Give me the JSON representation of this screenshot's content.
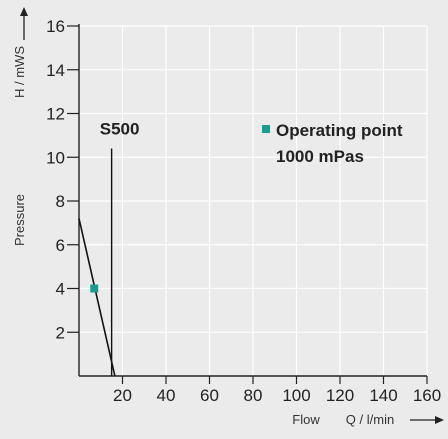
{
  "chart_data": {
    "type": "line",
    "xlabel": "Q / l/min",
    "xlabel_prefix": "Flow",
    "ylabel": "H / mWS",
    "ylabel_prefix": "Pressure",
    "xlim": [
      0,
      160
    ],
    "ylim": [
      0,
      16
    ],
    "x_ticks": [
      20,
      40,
      60,
      80,
      100,
      120,
      140,
      160
    ],
    "y_ticks": [
      2,
      4,
      6,
      8,
      10,
      12,
      14,
      16
    ],
    "grid": true,
    "series": [
      {
        "name": "S500",
        "x": [
          0,
          16.5
        ],
        "y": [
          7.2,
          0
        ]
      }
    ],
    "vertical_line": {
      "x": 15,
      "y_top": 10.4
    },
    "operating_point": {
      "x": 7,
      "y": 4,
      "color": "#1a9b8c"
    },
    "legend": {
      "marker_color": "#1a9b8c",
      "line1": "Operating point",
      "line2": "1000 mPas"
    }
  }
}
